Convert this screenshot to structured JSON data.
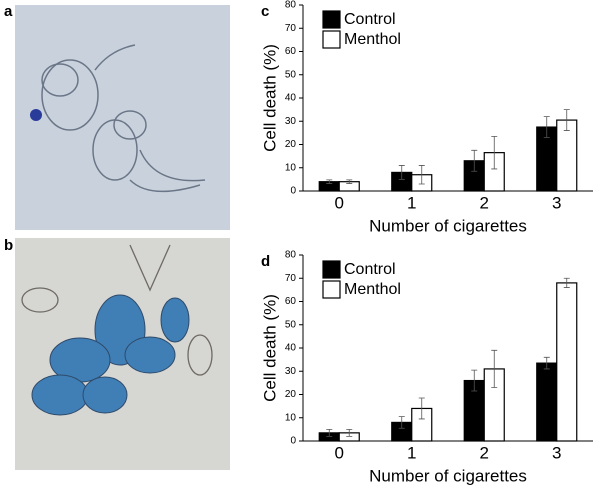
{
  "images": [
    {
      "label": "a"
    },
    {
      "label": "b"
    }
  ],
  "chart_data": [
    {
      "panel": "c",
      "type": "bar",
      "xlabel": "Number of cigarettes",
      "ylabel": "Cell death (%)",
      "categories": [
        "0",
        "1",
        "2",
        "3"
      ],
      "series": [
        {
          "name": "Control",
          "color": "#000000",
          "values": [
            4,
            8,
            13,
            27.5
          ],
          "errors": [
            0.8,
            3,
            4.5,
            4.5
          ]
        },
        {
          "name": "Menthol",
          "color": "#ffffff",
          "values": [
            4,
            7,
            16.5,
            30.5
          ],
          "errors": [
            0.8,
            4,
            7,
            4.5
          ]
        }
      ],
      "ylim": [
        0,
        80
      ],
      "yticks": [
        0,
        10,
        20,
        30,
        40,
        50,
        60,
        70,
        80
      ],
      "legend": "upper left"
    },
    {
      "panel": "d",
      "type": "bar",
      "xlabel": "Number of cigarettes",
      "ylabel": "Cell death (%)",
      "categories": [
        "0",
        "1",
        "2",
        "3"
      ],
      "series": [
        {
          "name": "Control",
          "color": "#000000",
          "values": [
            3.5,
            8,
            26,
            33.5
          ],
          "errors": [
            1.5,
            2.5,
            4.5,
            2.5
          ]
        },
        {
          "name": "Menthol",
          "color": "#ffffff",
          "values": [
            3.5,
            14,
            31,
            68
          ],
          "errors": [
            1.5,
            4.5,
            8,
            2
          ]
        }
      ],
      "ylim": [
        0,
        80
      ],
      "yticks": [
        0,
        10,
        20,
        30,
        40,
        50,
        60,
        70,
        80
      ],
      "legend": "upper left"
    }
  ]
}
